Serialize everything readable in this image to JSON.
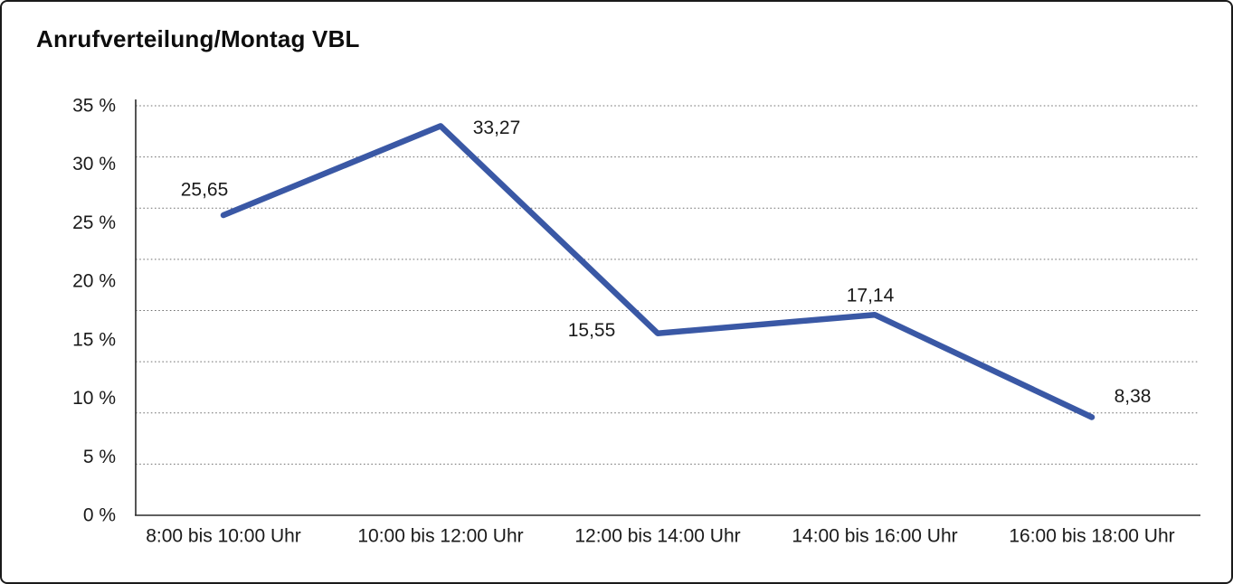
{
  "window": {
    "title": "Anrufverteilung/Montag VBL"
  },
  "chart_data": {
    "type": "line",
    "title": "Anrufverteilung/Montag VBL",
    "categories": [
      "8:00 bis 10:00 Uhr",
      "10:00 bis 12:00 Uhr",
      "12:00 bis 14:00 Uhr",
      "14:00 bis 16:00 Uhr",
      "16:00 bis 18:00 Uhr"
    ],
    "values": [
      25.65,
      33.27,
      15.55,
      17.14,
      8.38
    ],
    "value_labels": [
      "25,65",
      "33,27",
      "15,55",
      "17,14",
      "8,38"
    ],
    "xlabel": "",
    "ylabel": "",
    "ylim": [
      0,
      35
    ],
    "yticks": [
      0,
      5,
      10,
      15,
      20,
      25,
      30,
      35
    ],
    "ytick_labels": [
      "0 %",
      "5 %",
      "10 %",
      "15 %",
      "20 %",
      "25 %",
      "30 %",
      "35 %"
    ],
    "grid": "horizontal-dotted",
    "gridline_count": 8,
    "legend": "none",
    "colors": {
      "line": "#3A58A5",
      "grid": "#707070",
      "axis": "#2b2b2b",
      "text": "#1a1a1a",
      "background": "#ffffff",
      "border": "#1a1a1a"
    }
  }
}
